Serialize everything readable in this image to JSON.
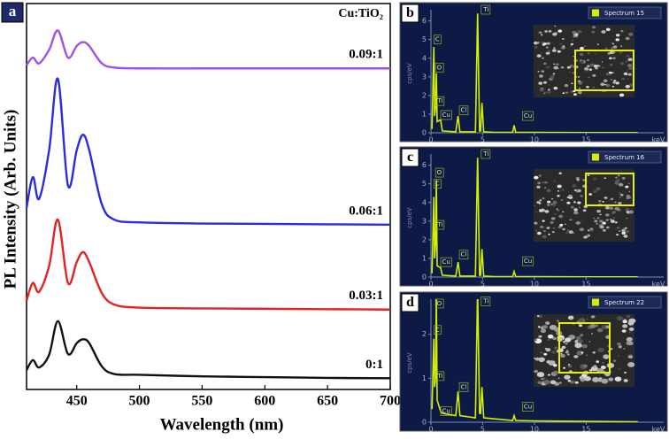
{
  "chart_data": [
    {
      "type": "line",
      "panel_label": "a",
      "xlabel": "Wavelength (nm)",
      "ylabel": "PL Intensity (Arb. Units)",
      "legend_title": "Cu:TiO₂",
      "xlim": [
        410,
        700
      ],
      "xticks": [
        450,
        500,
        550,
        600,
        650,
        700
      ],
      "ylim": [
        0,
        100
      ],
      "x": [
        410,
        415,
        420,
        428,
        435,
        443,
        450,
        455,
        460,
        470,
        480,
        500,
        550,
        600,
        650,
        700
      ],
      "series": [
        {
          "name": "0.09:1",
          "color": "#a24fe6",
          "values": [
            84,
            86,
            84.5,
            88,
            93,
            86,
            89,
            90,
            89,
            84.5,
            83.4,
            83.2,
            83.2,
            83.2,
            83.2,
            83.2
          ]
        },
        {
          "name": "0.06:1",
          "color": "#2b2be3",
          "values": [
            47,
            55,
            49.4,
            62,
            80.5,
            52.9,
            62,
            66,
            62,
            48,
            44,
            43.3,
            43,
            42.9,
            42.8,
            42.7
          ]
        },
        {
          "name": "0.03:1",
          "color": "#e52222",
          "values": [
            23,
            27.6,
            25.3,
            32,
            44,
            27.6,
            33,
            35.6,
            33,
            25,
            22,
            21.2,
            21,
            20.9,
            20.8,
            20.7
          ]
        },
        {
          "name": "0:1",
          "color": "#111111",
          "values": [
            5,
            7.6,
            5.7,
            9,
            17.7,
            9.2,
            12,
            13,
            12,
            6,
            4,
            3.8,
            3.4,
            3.2,
            3.0,
            2.9
          ]
        }
      ]
    },
    {
      "type": "spectrum",
      "panel_label": "b",
      "legend": "Spectrum 15",
      "ylabel": "cps/eV",
      "xlabel": "keV",
      "color": "#d4f000",
      "xlim": [
        0,
        22.5
      ],
      "xticks": [
        0,
        5,
        10,
        15
      ],
      "ylim": [
        0,
        6.6
      ],
      "yticks": [
        0,
        1,
        2,
        3,
        4,
        5,
        6
      ],
      "x": [
        0.1,
        0.28,
        0.35,
        0.45,
        0.52,
        0.6,
        0.93,
        1.1,
        2.4,
        2.62,
        2.8,
        4.3,
        4.51,
        4.7,
        4.8,
        4.93,
        5.1,
        6,
        7.9,
        8.04,
        8.2,
        10,
        15,
        20
      ],
      "values": [
        0.2,
        4.6,
        0.9,
        1.4,
        3.2,
        0.6,
        0.7,
        0.1,
        0.05,
        0.9,
        0.05,
        0.05,
        6.4,
        0.1,
        0.1,
        1.6,
        0.05,
        0.03,
        0.02,
        0.4,
        0.02,
        0.02,
        0.01,
        0.01
      ],
      "annotations": [
        {
          "text": "C",
          "x": 0.25,
          "y": 5.0
        },
        {
          "text": "O",
          "x": 0.4,
          "y": 3.5
        },
        {
          "text": "Ti",
          "x": 0.45,
          "y": 1.7
        },
        {
          "text": "Cu",
          "x": 0.9,
          "y": 0.95
        },
        {
          "text": "Cl",
          "x": 2.7,
          "y": 1.2
        },
        {
          "text": "Ti",
          "x": 4.9,
          "y": 6.6
        },
        {
          "text": "Cu",
          "x": 8.8,
          "y": 0.9
        }
      ]
    },
    {
      "type": "spectrum",
      "panel_label": "c",
      "legend": "Spectrum 16",
      "ylabel": "cps/eV",
      "xlabel": "keV",
      "color": "#d4f000",
      "xlim": [
        0,
        22.5
      ],
      "xticks": [
        0,
        5,
        10,
        15
      ],
      "ylim": [
        0,
        6.6
      ],
      "yticks": [
        0,
        1,
        2,
        3,
        4,
        5,
        6
      ],
      "x": [
        0.1,
        0.28,
        0.35,
        0.45,
        0.52,
        0.6,
        0.93,
        1.1,
        2.4,
        2.62,
        2.8,
        4.3,
        4.51,
        4.7,
        4.8,
        4.93,
        5.1,
        6,
        7.9,
        8.04,
        8.2,
        10,
        15,
        20
      ],
      "values": [
        0.2,
        4.3,
        1.0,
        1.8,
        5.2,
        0.6,
        0.5,
        0.1,
        0.05,
        0.8,
        0.05,
        0.05,
        6.4,
        0.1,
        0.1,
        1.5,
        0.05,
        0.03,
        0.02,
        0.3,
        0.02,
        0.02,
        0.01,
        0.01
      ],
      "annotations": [
        {
          "text": "O",
          "x": 0.4,
          "y": 5.6
        },
        {
          "text": "C",
          "x": 0.25,
          "y": 5.0
        },
        {
          "text": "Ti",
          "x": 0.45,
          "y": 2.8
        },
        {
          "text": "Cu",
          "x": 0.9,
          "y": 0.8
        },
        {
          "text": "Cl",
          "x": 2.7,
          "y": 1.2
        },
        {
          "text": "Ti",
          "x": 4.9,
          "y": 6.6
        },
        {
          "text": "Cu",
          "x": 8.8,
          "y": 0.85
        }
      ]
    },
    {
      "type": "spectrum",
      "panel_label": "d",
      "legend": "Spectrum 22",
      "ylabel": "cps/eV",
      "xlabel": "keV",
      "color": "#d4f000",
      "xlim": [
        0,
        22.5
      ],
      "xticks": [
        0,
        5,
        10,
        15
      ],
      "ylim": [
        0,
        2.8
      ],
      "yticks": [
        0,
        1,
        2
      ],
      "x": [
        0.1,
        0.28,
        0.35,
        0.45,
        0.52,
        0.6,
        0.93,
        1.1,
        2.4,
        2.62,
        2.8,
        4.3,
        4.51,
        4.7,
        4.8,
        4.93,
        5.1,
        6,
        7.9,
        8.04,
        8.2,
        10,
        15,
        20
      ],
      "values": [
        0.3,
        1.9,
        0.8,
        1.0,
        2.9,
        0.5,
        0.25,
        0.2,
        0.15,
        0.7,
        0.15,
        0.1,
        3.0,
        0.2,
        0.2,
        0.8,
        0.1,
        0.08,
        0.04,
        0.15,
        0.04,
        0.03,
        0.02,
        0.01
      ],
      "annotations": [
        {
          "text": "O",
          "x": 0.4,
          "y": 2.7
        },
        {
          "text": "C",
          "x": 0.25,
          "y": 2.1
        },
        {
          "text": "Ti",
          "x": 0.45,
          "y": 1.05
        },
        {
          "text": "Cu",
          "x": 0.9,
          "y": 0.25
        },
        {
          "text": "Cl",
          "x": 2.7,
          "y": 0.8
        },
        {
          "text": "Ti",
          "x": 4.9,
          "y": 2.75
        },
        {
          "text": "Cu",
          "x": 8.8,
          "y": 0.35
        }
      ]
    }
  ]
}
